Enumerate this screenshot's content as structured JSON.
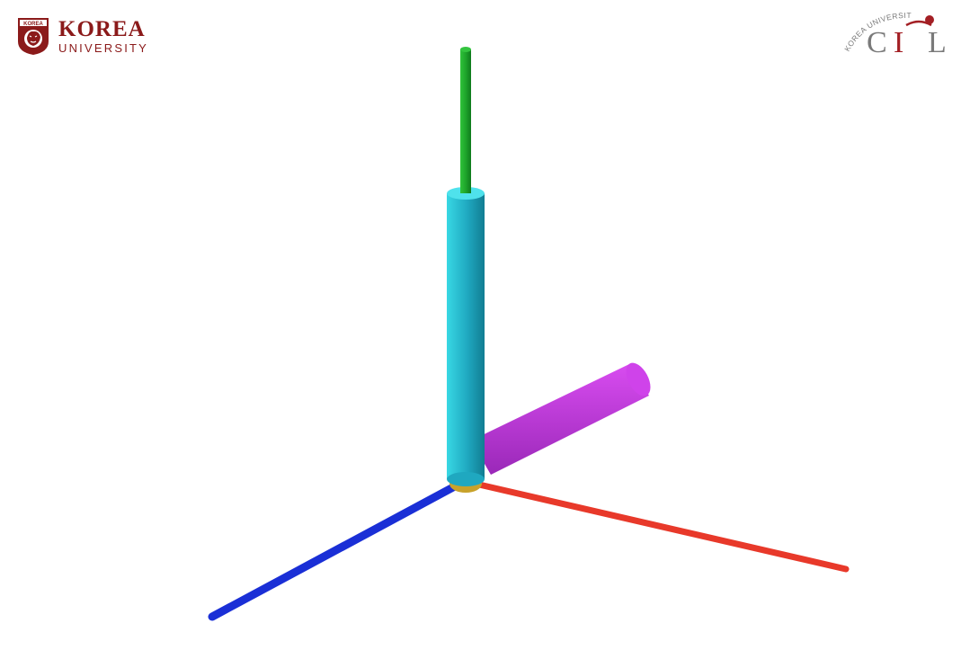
{
  "logos": {
    "left": {
      "crest_text": "KOREA",
      "name_line1": "KOREA",
      "name_line2": "UNIVERSITY",
      "color": "#8b1a1a"
    },
    "right": {
      "arc_text": "KOREA UNIVERSITY",
      "acronym_c": "C",
      "acronym_i": "I",
      "acronym_l": "L",
      "color_gray": "#7a7a7a",
      "color_red": "#a31f24"
    }
  },
  "scene": {
    "axes": [
      {
        "name": "y-axis",
        "color": "#1faa2a"
      },
      {
        "name": "x-axis",
        "color": "#e8392a"
      },
      {
        "name": "z-axis",
        "color": "#1a2fd6"
      }
    ],
    "cylinders": [
      {
        "name": "vertical-cylinder",
        "color": "#29c9d8"
      },
      {
        "name": "tilted-cylinder",
        "color": "#c43ee0"
      }
    ],
    "origin_color": "#c8a22a"
  }
}
